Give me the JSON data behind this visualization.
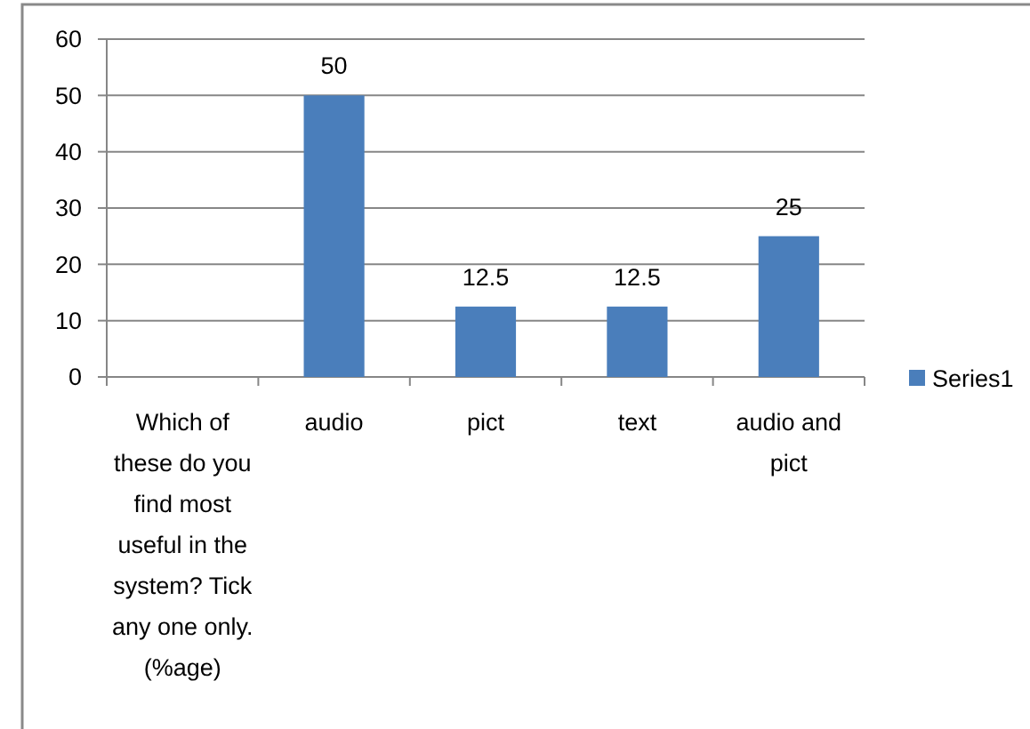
{
  "chart_data": {
    "type": "bar",
    "categories": [
      "Which of these do you find most useful in the system? Tick any one only. (%age)",
      "audio",
      "pict",
      "text",
      "audio and pict"
    ],
    "series": [
      {
        "name": "Series1",
        "color": "#4a7ebb",
        "values": [
          null,
          50,
          12.5,
          12.5,
          25
        ]
      }
    ],
    "ylim": [
      0,
      60
    ],
    "yticks": [
      0,
      10,
      20,
      30,
      40,
      50,
      60
    ],
    "grid": "y",
    "legend": "right",
    "data_labels": true
  }
}
